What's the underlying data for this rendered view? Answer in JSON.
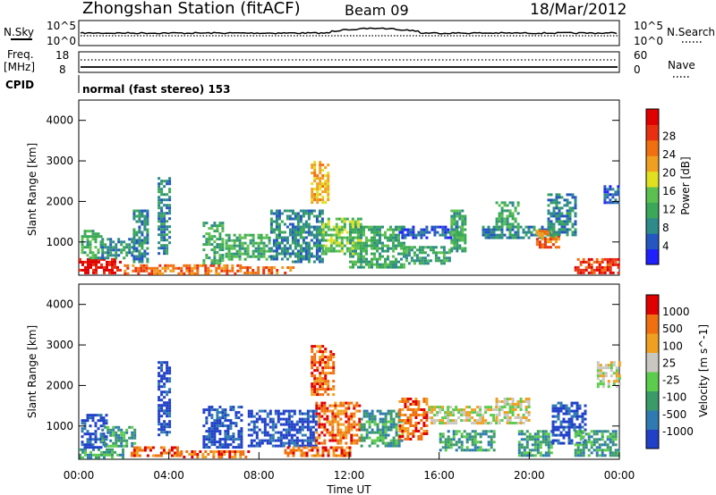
{
  "header": {
    "station": "Zhongshan Station (fitACF)",
    "beam": "Beam 09",
    "date": "18/Mar/2012"
  },
  "strip_noise": {
    "left_label": "N.Sky",
    "left_ticks": [
      "10^5",
      "10^0"
    ],
    "right_label": "N.Search",
    "right_ticks": [
      "10^5",
      "10^0"
    ]
  },
  "strip_freq": {
    "left_label_1": "Freq.",
    "left_label_2": "[MHz]",
    "left_ticks": [
      "18",
      "8"
    ],
    "right_label": "Nave",
    "right_ticks": [
      "60",
      "0"
    ]
  },
  "strip_cpid": {
    "label": "CPID",
    "text": "normal (fast stereo) 153"
  },
  "chart_data": [
    {
      "type": "heatmap",
      "name": "power",
      "ylabel": "Slant Range [km]",
      "y_ticks": [
        "1000",
        "2000",
        "3000",
        "4000"
      ],
      "ylim": [
        180,
        4500
      ],
      "xlim": [
        0,
        24
      ],
      "colorbar": {
        "label": "Power [dB]",
        "ticks": [
          "4",
          "8",
          "12",
          "16",
          "20",
          "24",
          "28"
        ],
        "colors": [
          "#1f1fff",
          "#2457c0",
          "#2f8a8a",
          "#3aa858",
          "#5cc050",
          "#e0e020",
          "#f0a020",
          "#f07010",
          "#e83010",
          "#e00000"
        ]
      },
      "regions": [
        {
          "t0": 0.0,
          "t1": 1.9,
          "r0": 250,
          "r1": 600,
          "level": 9
        },
        {
          "t0": 0.1,
          "t1": 1.0,
          "r0": 600,
          "r1": 1300,
          "level": 3
        },
        {
          "t0": 1.0,
          "t1": 2.4,
          "r0": 600,
          "r1": 1100,
          "level": 2
        },
        {
          "t0": 2.0,
          "t1": 7.2,
          "r0": 250,
          "r1": 450,
          "level": 7
        },
        {
          "t0": 2.4,
          "t1": 3.0,
          "r0": 500,
          "r1": 1800,
          "level": 2
        },
        {
          "t0": 3.5,
          "t1": 4.0,
          "r0": 700,
          "r1": 2600,
          "level": 2
        },
        {
          "t0": 5.5,
          "t1": 6.4,
          "r0": 500,
          "r1": 1500,
          "level": 3
        },
        {
          "t0": 6.5,
          "t1": 8.5,
          "r0": 600,
          "r1": 1200,
          "level": 3
        },
        {
          "t0": 7.2,
          "t1": 9.5,
          "r0": 250,
          "r1": 400,
          "level": 7
        },
        {
          "t0": 8.5,
          "t1": 10.8,
          "r0": 500,
          "r1": 1800,
          "level": 2
        },
        {
          "t0": 10.3,
          "t1": 11.1,
          "r0": 2000,
          "r1": 3000,
          "level": 6
        },
        {
          "t0": 10.8,
          "t1": 12.5,
          "r0": 700,
          "r1": 1600,
          "level": 4
        },
        {
          "t0": 12.0,
          "t1": 14.5,
          "r0": 400,
          "r1": 1400,
          "level": 3
        },
        {
          "t0": 14.2,
          "t1": 17.0,
          "r0": 1100,
          "r1": 1400,
          "level": 1
        },
        {
          "t0": 14.5,
          "t1": 16.5,
          "r0": 500,
          "r1": 900,
          "level": 3
        },
        {
          "t0": 16.5,
          "t1": 17.2,
          "r0": 800,
          "r1": 1800,
          "level": 3
        },
        {
          "t0": 17.9,
          "t1": 21.2,
          "r0": 1100,
          "r1": 1400,
          "level": 2
        },
        {
          "t0": 18.5,
          "t1": 19.5,
          "r0": 1400,
          "r1": 2000,
          "level": 3
        },
        {
          "t0": 20.3,
          "t1": 21.3,
          "r0": 900,
          "r1": 1300,
          "level": 7
        },
        {
          "t0": 20.8,
          "t1": 22.0,
          "r0": 1200,
          "r1": 2200,
          "level": 2
        },
        {
          "t0": 22.0,
          "t1": 24.0,
          "r0": 250,
          "r1": 600,
          "level": 8
        },
        {
          "t0": 23.3,
          "t1": 24.0,
          "r0": 2000,
          "r1": 2400,
          "level": 1
        }
      ]
    },
    {
      "type": "heatmap",
      "name": "velocity",
      "ylabel": "Slant Range [km]",
      "y_ticks": [
        "1000",
        "2000",
        "3000",
        "4000"
      ],
      "ylim": [
        180,
        4500
      ],
      "xlim": [
        0,
        24
      ],
      "x_ticks": [
        "00:00",
        "04:00",
        "08:00",
        "12:00",
        "16:00",
        "20:00",
        "00:00"
      ],
      "xlabel": "Time UT",
      "colorbar": {
        "label": "Velocity [m s^-1]",
        "ticks": [
          "1000",
          "500",
          "100",
          "25",
          "-25",
          "-100",
          "-500",
          "-1000"
        ],
        "colors": [
          "#2040c8",
          "#2f7ab0",
          "#3a9a6a",
          "#5ccc4c",
          "#c8c8c0",
          "#f0a020",
          "#f07010",
          "#e00000"
        ]
      },
      "regions": [
        {
          "t0": 0.0,
          "t1": 2.0,
          "r0": 250,
          "r1": 450,
          "level": 2
        },
        {
          "t0": 0.1,
          "t1": 1.2,
          "r0": 500,
          "r1": 1300,
          "level": 0
        },
        {
          "t0": 1.0,
          "t1": 2.5,
          "r0": 500,
          "r1": 1000,
          "level": 2
        },
        {
          "t0": 2.3,
          "t1": 4.5,
          "r0": 250,
          "r1": 500,
          "level": 6
        },
        {
          "t0": 3.5,
          "t1": 4.0,
          "r0": 800,
          "r1": 2600,
          "level": 0
        },
        {
          "t0": 4.5,
          "t1": 7.5,
          "r0": 250,
          "r1": 400,
          "level": 6
        },
        {
          "t0": 5.5,
          "t1": 7.2,
          "r0": 500,
          "r1": 1500,
          "level": 0
        },
        {
          "t0": 7.5,
          "t1": 10.5,
          "r0": 500,
          "r1": 1400,
          "level": 0
        },
        {
          "t0": 9.0,
          "t1": 12.0,
          "r0": 250,
          "r1": 500,
          "level": 6
        },
        {
          "t0": 10.3,
          "t1": 11.3,
          "r0": 1800,
          "r1": 3000,
          "level": 6
        },
        {
          "t0": 10.5,
          "t1": 12.5,
          "r0": 600,
          "r1": 1600,
          "level": 6
        },
        {
          "t0": 12.5,
          "t1": 14.3,
          "r0": 500,
          "r1": 1400,
          "level": 2
        },
        {
          "t0": 14.2,
          "t1": 15.5,
          "r0": 700,
          "r1": 1700,
          "level": 6
        },
        {
          "t0": 15.5,
          "t1": 18.5,
          "r0": 1100,
          "r1": 1500,
          "level": 4
        },
        {
          "t0": 16.0,
          "t1": 18.5,
          "r0": 400,
          "r1": 900,
          "level": 2
        },
        {
          "t0": 18.5,
          "t1": 20.0,
          "r0": 1100,
          "r1": 1700,
          "level": 4
        },
        {
          "t0": 19.5,
          "t1": 21.0,
          "r0": 300,
          "r1": 900,
          "level": 2
        },
        {
          "t0": 21.0,
          "t1": 22.5,
          "r0": 600,
          "r1": 1600,
          "level": 0
        },
        {
          "t0": 22.0,
          "t1": 24.0,
          "r0": 250,
          "r1": 900,
          "level": 2
        },
        {
          "t0": 23.0,
          "t1": 24.0,
          "r0": 2000,
          "r1": 2600,
          "level": 4
        }
      ]
    }
  ]
}
